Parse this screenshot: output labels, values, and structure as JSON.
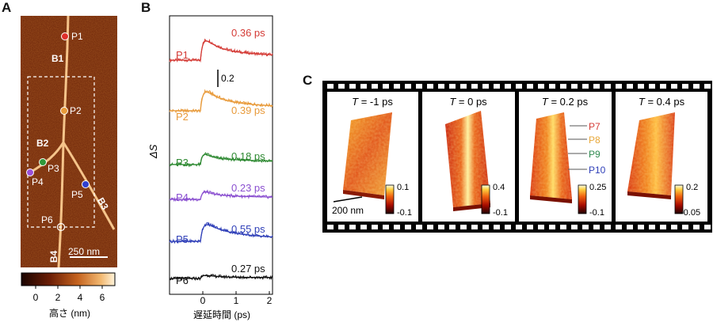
{
  "panelA": {
    "letter": "A",
    "branches": [
      "B1",
      "B2",
      "B3",
      "B4"
    ],
    "points": [
      {
        "label": "P1",
        "color": "#e0302a"
      },
      {
        "label": "P2",
        "color": "#e89a3a"
      },
      {
        "label": "P3",
        "color": "#2f9a3a"
      },
      {
        "label": "P4",
        "color": "#9a50d8"
      },
      {
        "label": "P5",
        "color": "#2f3fd0"
      },
      {
        "label": "P6",
        "color": "#111111"
      }
    ],
    "scalebar": "250 nm",
    "colorbar": {
      "ticks": [
        "0",
        "2",
        "4",
        "6"
      ],
      "label": "高さ (nm)"
    }
  },
  "panelB": {
    "letter": "B",
    "ylabel": "ΔS",
    "xlabel": "遅延時間 (ps)",
    "xticks": [
      "0",
      "1",
      "2"
    ],
    "scale": "0.2",
    "chart_data": {
      "type": "line",
      "xlim": [
        -1,
        2
      ],
      "series": [
        {
          "name": "P1",
          "color": "#d43a35",
          "tau": "0.36 ps"
        },
        {
          "name": "P2",
          "color": "#e89a3a",
          "tau": "0.39 ps"
        },
        {
          "name": "P3",
          "color": "#2f8a33",
          "tau": "0.18 ps"
        },
        {
          "name": "P4",
          "color": "#8a4fd0",
          "tau": "0.23 ps"
        },
        {
          "name": "P5",
          "color": "#2f3fb8",
          "tau": "0.55 ps"
        },
        {
          "name": "P6",
          "color": "#111111",
          "tau": "0.27 ps"
        }
      ]
    }
  },
  "panelC": {
    "letter": "C",
    "frames": [
      {
        "title_var": "T",
        "title_val": " = -1 ps",
        "cb_top": "0.1",
        "cb_bot": "-0.1"
      },
      {
        "title_var": "T",
        "title_val": " = 0 ps",
        "cb_top": "0.4",
        "cb_bot": "-0.1"
      },
      {
        "title_var": "T",
        "title_val": " = 0.2 ps",
        "cb_top": "0.25",
        "cb_bot": "-0.1"
      },
      {
        "title_var": "T",
        "title_val": " = 0.4 ps",
        "cb_top": "0.2",
        "cb_bot": "-0.05"
      }
    ],
    "scalebar": "200 nm",
    "pointers": [
      {
        "label": "P7",
        "color": "#d43a35"
      },
      {
        "label": "P8",
        "color": "#e8a83a"
      },
      {
        "label": "P9",
        "color": "#2f8a50"
      },
      {
        "label": "P10",
        "color": "#2f3fb8"
      }
    ]
  }
}
